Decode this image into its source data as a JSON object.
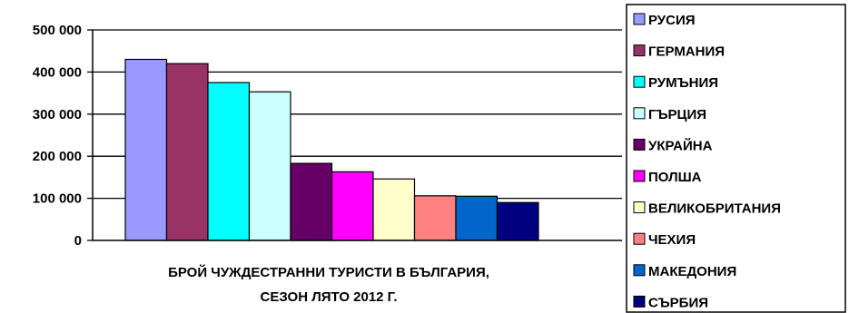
{
  "chart_data": {
    "type": "bar",
    "xlabel_lines": [
      "БРОЙ ЧУЖДЕСТРАННИ ТУРИСТИ В БЪЛГАРИЯ,",
      "СЕЗОН ЛЯТО 2012 Г."
    ],
    "ylim": [
      0,
      500000
    ],
    "yticks": [
      {
        "value": 0,
        "label": "0"
      },
      {
        "value": 100000,
        "label": "100 000"
      },
      {
        "value": 200000,
        "label": "200 000"
      },
      {
        "value": 300000,
        "label": "300 000"
      },
      {
        "value": 400000,
        "label": "400 000"
      },
      {
        "value": 500000,
        "label": "500 000"
      }
    ],
    "grid": true,
    "legend_position": "right",
    "series": [
      {
        "name": "РУСИЯ",
        "value": 430000,
        "color": "#9999ff"
      },
      {
        "name": "ГЕРМАНИЯ",
        "value": 420000,
        "color": "#993366"
      },
      {
        "name": "РУМЪНИЯ",
        "value": 375000,
        "color": "#00ffff"
      },
      {
        "name": "ГЪРЦИЯ",
        "value": 353000,
        "color": "#ccffff"
      },
      {
        "name": "УКРАЙНА",
        "value": 183000,
        "color": "#660066"
      },
      {
        "name": "ПОЛША",
        "value": 163000,
        "color": "#ff00ff"
      },
      {
        "name": "ВЕЛИКОБРИТАНИЯ",
        "value": 146000,
        "color": "#ffffcc"
      },
      {
        "name": "ЧЕХИЯ",
        "value": 106000,
        "color": "#ff8080"
      },
      {
        "name": "МАКЕДОНИЯ",
        "value": 105000,
        "color": "#0066cc"
      },
      {
        "name": "СЪРБИЯ",
        "value": 90000,
        "color": "#000080"
      }
    ]
  }
}
